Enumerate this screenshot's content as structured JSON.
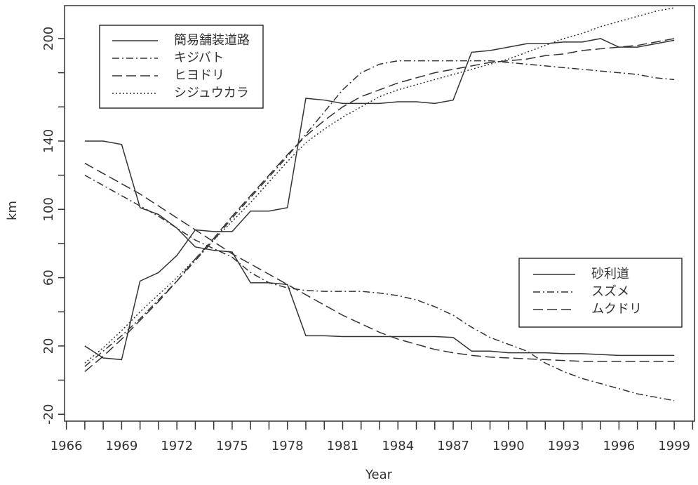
{
  "chart_data": {
    "type": "line",
    "x_label": "Year",
    "y_label": "km",
    "x": [
      1967,
      1968,
      1969,
      1970,
      1971,
      1972,
      1973,
      1974,
      1975,
      1976,
      1977,
      1978,
      1979,
      1980,
      1981,
      1982,
      1983,
      1984,
      1985,
      1986,
      1987,
      1988,
      1989,
      1990,
      1991,
      1992,
      1993,
      1994,
      1995,
      1996,
      1997,
      1998,
      1999
    ],
    "xlim": [
      1965.9,
      2000.1
    ],
    "xticks": [
      1966,
      1969,
      1972,
      1975,
      1978,
      1981,
      1984,
      1987,
      1990,
      1993,
      1996,
      1999
    ],
    "xminor": [
      1967,
      1968,
      1970,
      1971,
      1973,
      1974,
      1976,
      1977,
      1979,
      1980,
      1982,
      1983,
      1985,
      1986,
      1988,
      1989,
      1991,
      1992,
      1994,
      1995,
      1997,
      1998,
      2000
    ],
    "ylim": [
      -24,
      219.3
    ],
    "yticks": [
      -20,
      20,
      60,
      100,
      140,
      200
    ],
    "yminor": [
      0,
      40,
      80,
      120,
      160,
      180
    ],
    "series": [
      {
        "name": "簡易舗装道路",
        "color": "#333333",
        "dash": "solid",
        "legend": "upper left",
        "values": [
          20,
          13,
          12,
          58,
          63,
          73,
          88,
          87,
          87,
          99,
          99,
          101,
          165,
          164,
          162,
          162,
          162,
          163,
          163,
          162,
          164,
          192,
          193,
          195,
          197,
          197,
          198,
          198,
          200,
          195,
          195,
          197,
          199
        ]
      },
      {
        "name": "キジバト",
        "color": "#333333",
        "dash": "dashdot",
        "legend": "upper left",
        "values": [
          8,
          17,
          26,
          36,
          47,
          58,
          70,
          82,
          95,
          107,
          119,
          131,
          144,
          157,
          170,
          180,
          185,
          187,
          187,
          187,
          187,
          187,
          187,
          186,
          185,
          184,
          183,
          182,
          181,
          180,
          179,
          177,
          176
        ]
      },
      {
        "name": "ヒヨドリ",
        "color": "#333333",
        "dash": "dashed",
        "legend": "upper left",
        "values": [
          5,
          14,
          24,
          35,
          46,
          58,
          71,
          83,
          96,
          108,
          120,
          132,
          143,
          152,
          160,
          166,
          170,
          174,
          177,
          180,
          182,
          184,
          186,
          187,
          188,
          190,
          191,
          193,
          194,
          195,
          196,
          198,
          200
        ]
      },
      {
        "name": "シジュウカラ",
        "color": "#333333",
        "dash": "dotted",
        "legend": "upper left",
        "values": [
          10,
          19,
          29,
          40,
          50,
          60,
          71,
          82,
          93,
          104,
          116,
          128,
          139,
          147,
          154,
          160,
          166,
          170,
          173,
          176,
          179,
          182,
          185,
          188,
          192,
          196,
          200,
          203,
          207,
          210,
          213,
          216,
          218
        ]
      },
      {
        "name": "砂利道",
        "color": "#333333",
        "dash": "solid",
        "legend": "lower right",
        "values": [
          140,
          140,
          138,
          101,
          97,
          89,
          78,
          76,
          75,
          57,
          57,
          56,
          26,
          26,
          25.5,
          25.5,
          25.5,
          25.5,
          25.5,
          25.5,
          25,
          17,
          17,
          16,
          16,
          16,
          15.5,
          15.5,
          15,
          14.5,
          14.5,
          14.5,
          14.5
        ]
      },
      {
        "name": "スズメ",
        "color": "#333333",
        "dash": "dashdot",
        "legend": "lower right",
        "values": [
          120,
          114,
          108,
          102,
          96,
          89,
          82,
          77,
          72,
          63,
          57,
          54,
          52.5,
          52,
          52,
          52,
          51,
          49.5,
          47,
          43,
          38,
          31,
          25,
          21,
          17,
          10,
          5,
          1,
          -2,
          -5,
          -8,
          -10,
          -12
        ]
      },
      {
        "name": "ムクドリ",
        "color": "#333333",
        "dash": "dashed",
        "legend": "lower right",
        "values": [
          127,
          121,
          115,
          109,
          102,
          95,
          88,
          81,
          74,
          68,
          62,
          56,
          50,
          44,
          38,
          33,
          28,
          24,
          21,
          18,
          16,
          14.5,
          13.5,
          13,
          12.5,
          12,
          11.5,
          11,
          11,
          11,
          11,
          11,
          11
        ]
      }
    ]
  }
}
